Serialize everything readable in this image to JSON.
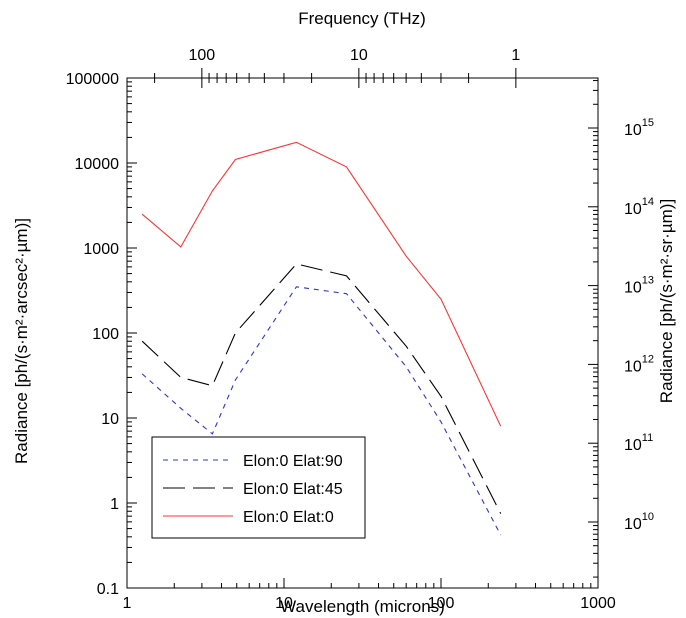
{
  "chart_data": {
    "type": "line",
    "title": "",
    "xlabel": "Wavelength (microns)",
    "ylabel": "Radiance [ph/(s·m²·arcsec²·µm)]",
    "top_xlabel": "Frequency (THz)",
    "right_ylabel": "Radiance [ph/(s·m²·sr·µm)]",
    "x_scale": "log",
    "y_scale": "log",
    "xlim": [
      1,
      1000
    ],
    "ylim": [
      0.1,
      100000
    ],
    "x_ticks": [
      "1",
      "10",
      "100",
      "1000"
    ],
    "y_ticks": [
      "0.1",
      "1",
      "10",
      "100",
      "1000",
      "10000",
      "100000"
    ],
    "top_ticks": [
      {
        "value": 100,
        "label": "100"
      },
      {
        "value": 10,
        "label": "10"
      },
      {
        "value": 1,
        "label": "1"
      }
    ],
    "right_ticks": [
      {
        "base": "10",
        "exp": "10",
        "value": 10000000000.0
      },
      {
        "base": "10",
        "exp": "11",
        "value": 100000000000.0
      },
      {
        "base": "10",
        "exp": "12",
        "value": 1000000000000.0
      },
      {
        "base": "10",
        "exp": "13",
        "value": 10000000000000.0
      },
      {
        "base": "10",
        "exp": "14",
        "value": 100000000000000.0
      },
      {
        "base": "10",
        "exp": "15",
        "value": 1000000000000000.0
      }
    ],
    "legend_position": "bottom-left",
    "grid": false,
    "series": [
      {
        "name": "Elon:0 Elat:90",
        "color": "#3333cc",
        "style": "short-dash",
        "x": [
          1.25,
          2.2,
          3.5,
          4.9,
          12,
          25,
          60,
          100,
          240
        ],
        "y": [
          33,
          13,
          6.5,
          28,
          350,
          290,
          40,
          9,
          0.42
        ]
      },
      {
        "name": "Elon:0 Elat:45",
        "color": "#000000",
        "style": "long-dash",
        "x": [
          1.25,
          2.2,
          3.5,
          4.9,
          12,
          25,
          60,
          100,
          240
        ],
        "y": [
          80,
          30,
          24,
          100,
          650,
          470,
          70,
          18,
          0.75
        ]
      },
      {
        "name": "Elon:0 Elat:0",
        "color": "#ff3333",
        "style": "solid",
        "x": [
          1.25,
          2.2,
          3.5,
          4.9,
          12,
          25,
          60,
          100,
          240
        ],
        "y": [
          2500,
          1030,
          4700,
          11000,
          17500,
          9000,
          800,
          250,
          8
        ]
      }
    ]
  }
}
